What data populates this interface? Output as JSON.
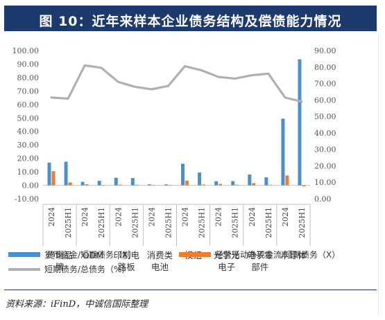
{
  "title": "图 10：近年来样本企业债务结构及偿债能力情况",
  "source": "资料来源：iFinD，中诚信国际整理",
  "chart_data": {
    "type": "bar",
    "x": [
      "2024",
      "2025H1",
      "2024",
      "2025H1",
      "2024",
      "2025H1",
      "2024",
      "2025H1",
      "2024",
      "2025H1",
      "2024",
      "2025H1",
      "2024",
      "2025H1",
      "2024",
      "2025H1"
    ],
    "groups": [
      {
        "label": "终端品牌"
      },
      {
        "label": "ODM"
      },
      {
        "label": "印制电路板"
      },
      {
        "label": "消费类电池"
      },
      {
        "label": "模组"
      },
      {
        "label": "光学光电子"
      },
      {
        "label": "电子零部件"
      },
      {
        "label": "半导体"
      }
    ],
    "series": [
      {
        "name": "货币资金/短期债务（X）",
        "axis": "left",
        "kind": "bar",
        "color": "#4a8fd0",
        "values": [
          16.8,
          17.5,
          2.6,
          3.3,
          5.6,
          5.4,
          0.7,
          0.7,
          16.0,
          9.5,
          3.0,
          3.1,
          8.0,
          5.9,
          49.5,
          93.5
        ]
      },
      {
        "name": "经营活动净现金流/短期债务（X）",
        "axis": "left",
        "kind": "bar",
        "color": "#ee7d2f",
        "values": [
          10.5,
          2.2,
          0.8,
          0.2,
          0.5,
          0.4,
          0.1,
          0.1,
          3.5,
          0.6,
          1.0,
          0.5,
          1.6,
          0.4,
          7.3,
          -0.7
        ]
      },
      {
        "name": "短期债务/总债务（%）",
        "axis": "right",
        "kind": "line",
        "color": "#b0b0b0",
        "values": [
          61.5,
          60.8,
          81.0,
          79.5,
          71.0,
          68.0,
          66.5,
          68.5,
          80.5,
          78.0,
          74.0,
          73.0,
          75.0,
          76.0,
          61.5,
          59.0
        ]
      }
    ],
    "left_axis": {
      "min": -10,
      "max": 100,
      "step": 10,
      "tick_labels": [
        "-10.00",
        "0.00",
        "10.00",
        "20.00",
        "30.00",
        "40.00",
        "50.00",
        "60.00",
        "70.00",
        "80.00",
        "90.00",
        "100.00"
      ]
    },
    "right_axis": {
      "min": 0,
      "max": 90,
      "step": 10,
      "tick_labels": [
        "0.00",
        "10.00",
        "20.00",
        "30.00",
        "40.00",
        "50.00",
        "60.00",
        "70.00",
        "80.00",
        "90.00"
      ]
    },
    "legend_position": "bottom",
    "grid": false
  }
}
